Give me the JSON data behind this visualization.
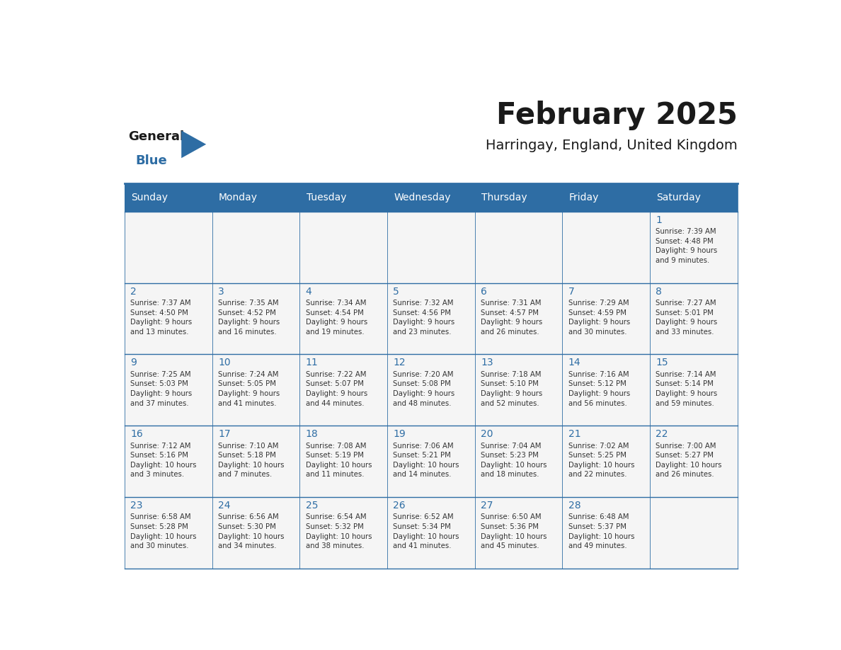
{
  "title": "February 2025",
  "subtitle": "Harringay, England, United Kingdom",
  "header_bg": "#2E6DA4",
  "header_text_color": "#FFFFFF",
  "cell_bg": "#F5F5F5",
  "day_number_color": "#2E6DA4",
  "cell_text_color": "#333333",
  "border_color": "#2E6DA4",
  "days_of_week": [
    "Sunday",
    "Monday",
    "Tuesday",
    "Wednesday",
    "Thursday",
    "Friday",
    "Saturday"
  ],
  "weeks": [
    [
      {
        "day": null,
        "info": null
      },
      {
        "day": null,
        "info": null
      },
      {
        "day": null,
        "info": null
      },
      {
        "day": null,
        "info": null
      },
      {
        "day": null,
        "info": null
      },
      {
        "day": null,
        "info": null
      },
      {
        "day": 1,
        "info": "Sunrise: 7:39 AM\nSunset: 4:48 PM\nDaylight: 9 hours\nand 9 minutes."
      }
    ],
    [
      {
        "day": 2,
        "info": "Sunrise: 7:37 AM\nSunset: 4:50 PM\nDaylight: 9 hours\nand 13 minutes."
      },
      {
        "day": 3,
        "info": "Sunrise: 7:35 AM\nSunset: 4:52 PM\nDaylight: 9 hours\nand 16 minutes."
      },
      {
        "day": 4,
        "info": "Sunrise: 7:34 AM\nSunset: 4:54 PM\nDaylight: 9 hours\nand 19 minutes."
      },
      {
        "day": 5,
        "info": "Sunrise: 7:32 AM\nSunset: 4:56 PM\nDaylight: 9 hours\nand 23 minutes."
      },
      {
        "day": 6,
        "info": "Sunrise: 7:31 AM\nSunset: 4:57 PM\nDaylight: 9 hours\nand 26 minutes."
      },
      {
        "day": 7,
        "info": "Sunrise: 7:29 AM\nSunset: 4:59 PM\nDaylight: 9 hours\nand 30 minutes."
      },
      {
        "day": 8,
        "info": "Sunrise: 7:27 AM\nSunset: 5:01 PM\nDaylight: 9 hours\nand 33 minutes."
      }
    ],
    [
      {
        "day": 9,
        "info": "Sunrise: 7:25 AM\nSunset: 5:03 PM\nDaylight: 9 hours\nand 37 minutes."
      },
      {
        "day": 10,
        "info": "Sunrise: 7:24 AM\nSunset: 5:05 PM\nDaylight: 9 hours\nand 41 minutes."
      },
      {
        "day": 11,
        "info": "Sunrise: 7:22 AM\nSunset: 5:07 PM\nDaylight: 9 hours\nand 44 minutes."
      },
      {
        "day": 12,
        "info": "Sunrise: 7:20 AM\nSunset: 5:08 PM\nDaylight: 9 hours\nand 48 minutes."
      },
      {
        "day": 13,
        "info": "Sunrise: 7:18 AM\nSunset: 5:10 PM\nDaylight: 9 hours\nand 52 minutes."
      },
      {
        "day": 14,
        "info": "Sunrise: 7:16 AM\nSunset: 5:12 PM\nDaylight: 9 hours\nand 56 minutes."
      },
      {
        "day": 15,
        "info": "Sunrise: 7:14 AM\nSunset: 5:14 PM\nDaylight: 9 hours\nand 59 minutes."
      }
    ],
    [
      {
        "day": 16,
        "info": "Sunrise: 7:12 AM\nSunset: 5:16 PM\nDaylight: 10 hours\nand 3 minutes."
      },
      {
        "day": 17,
        "info": "Sunrise: 7:10 AM\nSunset: 5:18 PM\nDaylight: 10 hours\nand 7 minutes."
      },
      {
        "day": 18,
        "info": "Sunrise: 7:08 AM\nSunset: 5:19 PM\nDaylight: 10 hours\nand 11 minutes."
      },
      {
        "day": 19,
        "info": "Sunrise: 7:06 AM\nSunset: 5:21 PM\nDaylight: 10 hours\nand 14 minutes."
      },
      {
        "day": 20,
        "info": "Sunrise: 7:04 AM\nSunset: 5:23 PM\nDaylight: 10 hours\nand 18 minutes."
      },
      {
        "day": 21,
        "info": "Sunrise: 7:02 AM\nSunset: 5:25 PM\nDaylight: 10 hours\nand 22 minutes."
      },
      {
        "day": 22,
        "info": "Sunrise: 7:00 AM\nSunset: 5:27 PM\nDaylight: 10 hours\nand 26 minutes."
      }
    ],
    [
      {
        "day": 23,
        "info": "Sunrise: 6:58 AM\nSunset: 5:28 PM\nDaylight: 10 hours\nand 30 minutes."
      },
      {
        "day": 24,
        "info": "Sunrise: 6:56 AM\nSunset: 5:30 PM\nDaylight: 10 hours\nand 34 minutes."
      },
      {
        "day": 25,
        "info": "Sunrise: 6:54 AM\nSunset: 5:32 PM\nDaylight: 10 hours\nand 38 minutes."
      },
      {
        "day": 26,
        "info": "Sunrise: 6:52 AM\nSunset: 5:34 PM\nDaylight: 10 hours\nand 41 minutes."
      },
      {
        "day": 27,
        "info": "Sunrise: 6:50 AM\nSunset: 5:36 PM\nDaylight: 10 hours\nand 45 minutes."
      },
      {
        "day": 28,
        "info": "Sunrise: 6:48 AM\nSunset: 5:37 PM\nDaylight: 10 hours\nand 49 minutes."
      },
      {
        "day": null,
        "info": null
      }
    ]
  ],
  "logo_general_color": "#1a1a1a",
  "logo_blue_color": "#2E6DA4",
  "logo_triangle_color": "#2E6DA4"
}
